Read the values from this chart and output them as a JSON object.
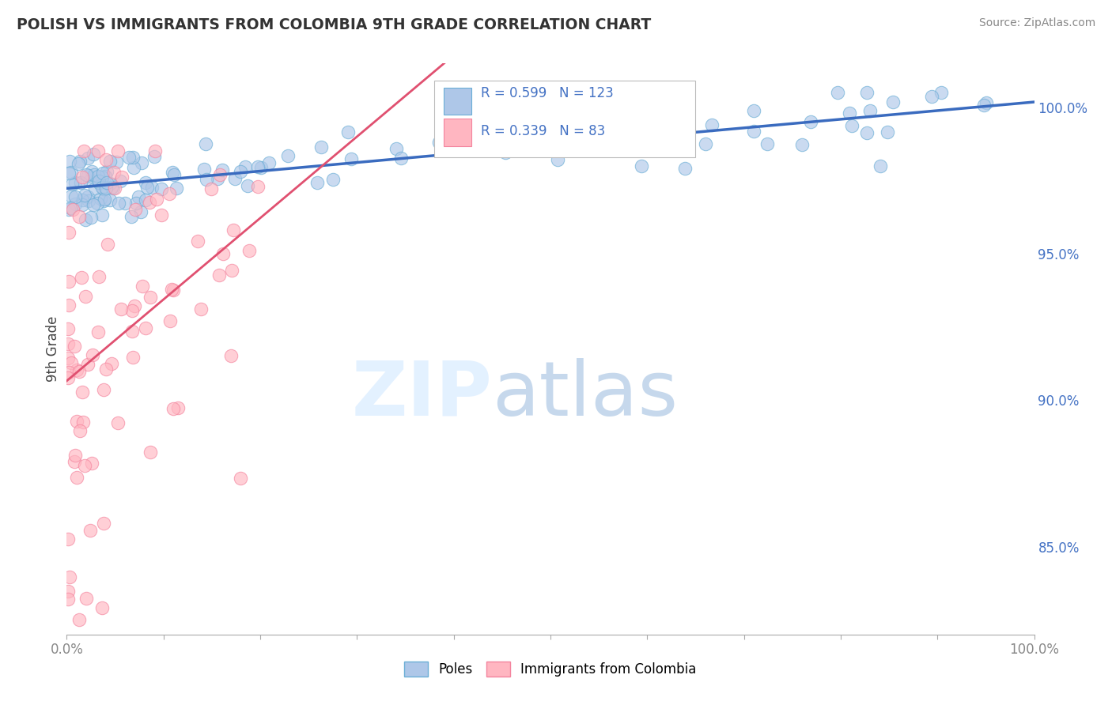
{
  "title": "POLISH VS IMMIGRANTS FROM COLOMBIA 9TH GRADE CORRELATION CHART",
  "source": "Source: ZipAtlas.com",
  "ylabel": "9th Grade",
  "xlim": [
    0.0,
    100.0
  ],
  "ylim": [
    82.0,
    101.5
  ],
  "right_yticks": [
    85.0,
    90.0,
    95.0,
    100.0
  ],
  "right_ytick_labels": [
    "85.0%",
    "90.0%",
    "95.0%",
    "100.0%"
  ],
  "poles_color": "#aec7e8",
  "poles_edge_color": "#6baed6",
  "colombia_color": "#ffb6c1",
  "colombia_edge_color": "#f4849e",
  "poles_line_color": "#3a6bbf",
  "colombia_line_color": "#e05070",
  "poles_R": 0.599,
  "poles_N": 123,
  "colombia_R": 0.339,
  "colombia_N": 83,
  "legend_poles": "Poles",
  "legend_colombia": "Immigrants from Colombia",
  "background_color": "#ffffff",
  "grid_color": "#d0d0d0",
  "title_color": "#333333",
  "source_color": "#888888",
  "right_axis_color": "#4472c4",
  "bottom_tick_color": "#888888"
}
